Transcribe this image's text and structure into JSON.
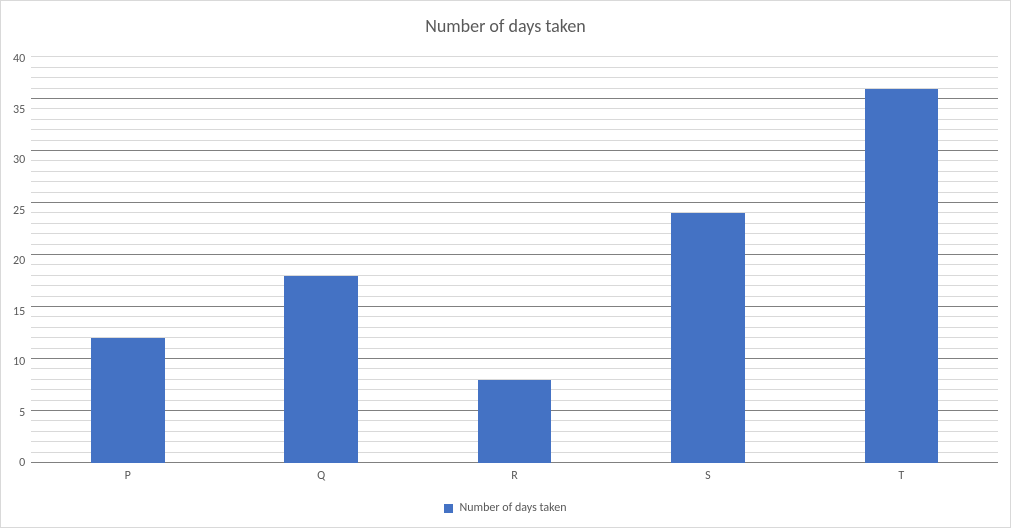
{
  "chart": {
    "type": "bar",
    "title": "Number of days taken",
    "title_fontsize": 18,
    "title_color": "#595959",
    "label_fontsize": 12,
    "label_color": "#595959",
    "categories": [
      "P",
      "Q",
      "R",
      "S",
      "T"
    ],
    "values": [
      12,
      18,
      8,
      24,
      36
    ],
    "bar_color": "#4472c4",
    "bar_width": 0.38,
    "background_color": "#ffffff",
    "border_color": "#d9d9d9",
    "ylim": [
      0,
      40
    ],
    "ytick_step": 5,
    "major_grid_color": "#808080",
    "major_grid_width": 1,
    "minor_grid_color": "#d9d9d9",
    "minor_grid_width": 1,
    "minor_grid_per_major": 5,
    "legend": {
      "position": "bottom",
      "label": "Number of days taken",
      "swatch_color": "#4472c4"
    }
  }
}
